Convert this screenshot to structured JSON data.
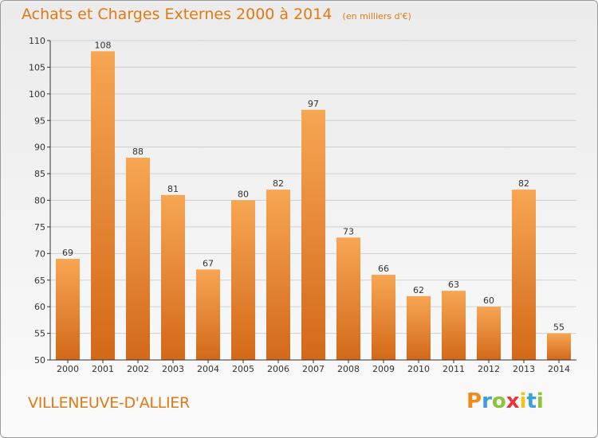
{
  "header": {
    "title": "Achats et Charges Externes 2000 à 2014",
    "unit": "(en milliers d'€)"
  },
  "footer": {
    "commune": "VILLENEUVE-D'ALLIER",
    "brand": "Proxiti",
    "brand_colors": [
      "#f08a1c",
      "#3aa0d8",
      "#8cc43c",
      "#e8343c",
      "#f0c419",
      "#3aa0d8",
      "#8cc43c"
    ]
  },
  "colors": {
    "bar_light": "#f7a653",
    "bar_dark": "#d2691a",
    "grid": "#cfcfcf",
    "accent": "#e07a14"
  },
  "chart_data": {
    "type": "bar",
    "title": "Achats et Charges Externes 2000 à 2014",
    "subtitle": "(en milliers d'€)",
    "categories": [
      "2000",
      "2001",
      "2002",
      "2003",
      "2004",
      "2005",
      "2006",
      "2007",
      "2008",
      "2009",
      "2010",
      "2011",
      "2012",
      "2013",
      "2014"
    ],
    "values": [
      69,
      108,
      88,
      81,
      67,
      80,
      82,
      97,
      73,
      66,
      62,
      63,
      60,
      82,
      55
    ],
    "ylim": [
      50,
      110
    ],
    "yticks": [
      50,
      55,
      60,
      65,
      70,
      75,
      80,
      85,
      90,
      95,
      100,
      105,
      110
    ],
    "grid": true,
    "xlabel": "",
    "ylabel": ""
  }
}
